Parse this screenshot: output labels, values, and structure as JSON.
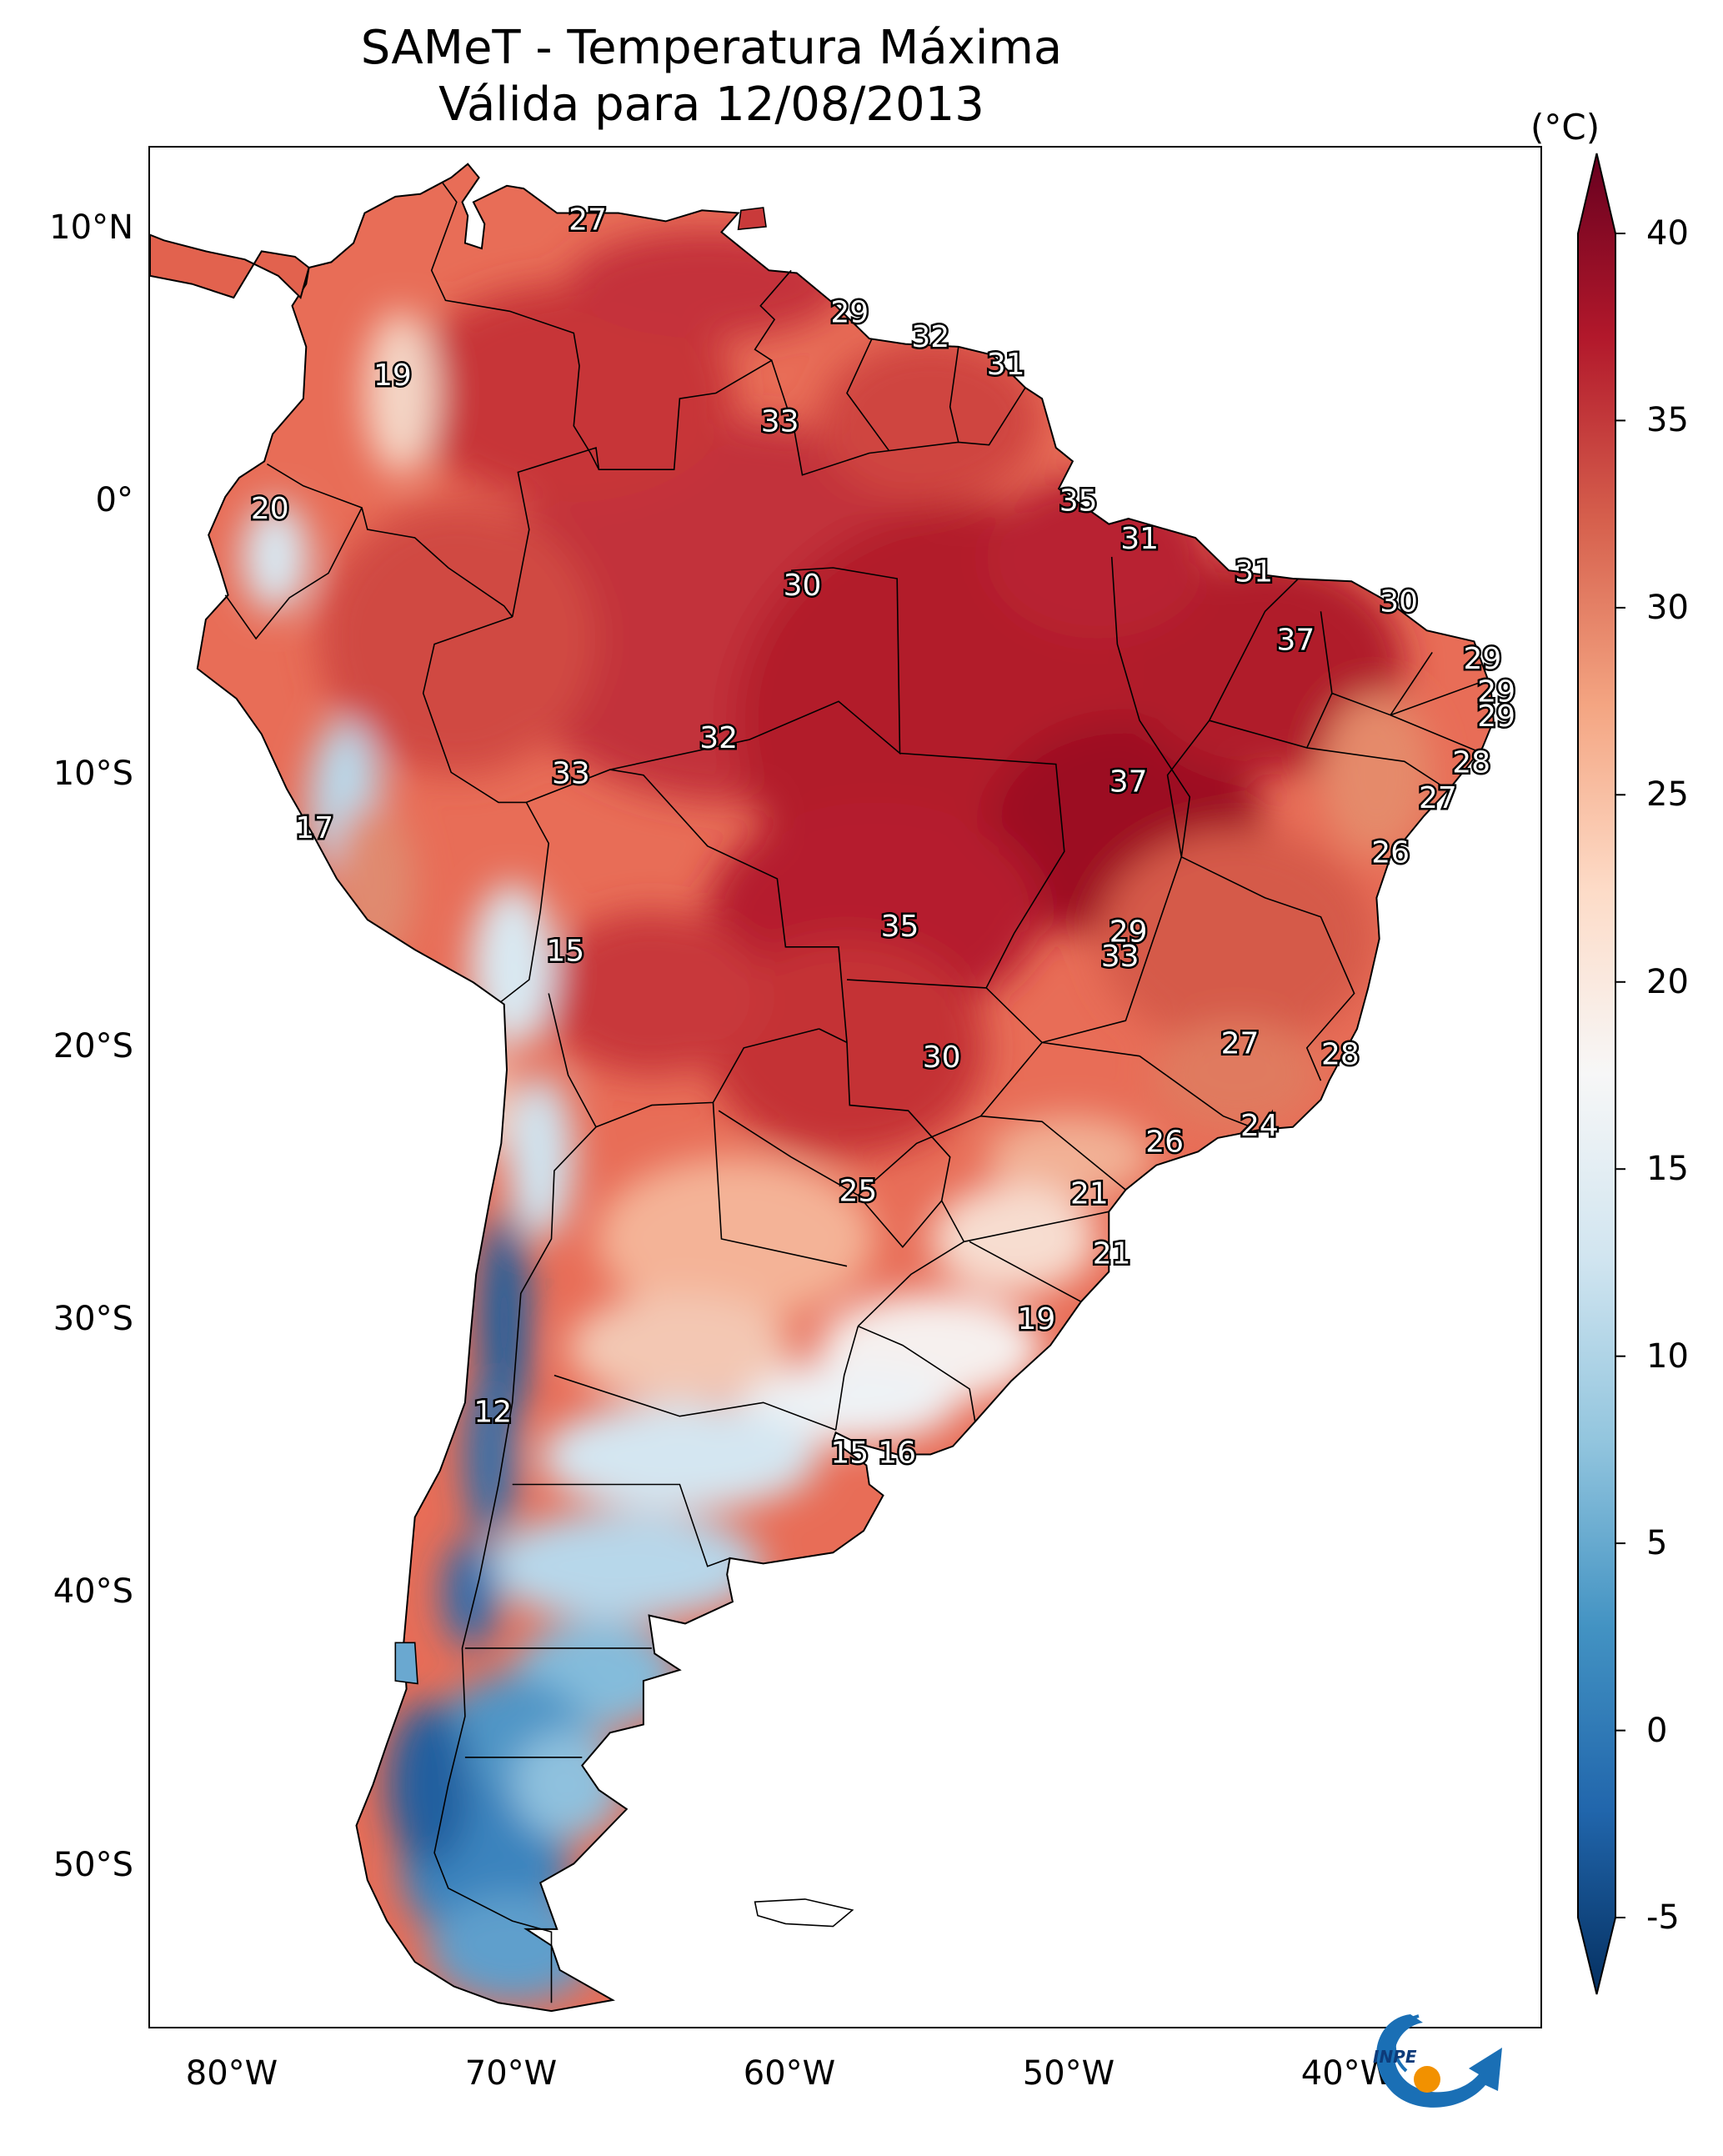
{
  "title": {
    "line1": "SAMeT - Temperatura Máxima",
    "line2": "Válida para 12/08/2013"
  },
  "map": {
    "lon_range": [
      -83,
      -33
    ],
    "lat_range": [
      -56,
      13
    ],
    "y_ticks": [
      {
        "label": "10°N",
        "lat": 10
      },
      {
        "label": "0°",
        "lat": 0
      },
      {
        "label": "10°S",
        "lat": -10
      },
      {
        "label": "20°S",
        "lat": -20
      },
      {
        "label": "30°S",
        "lat": -30
      },
      {
        "label": "40°S",
        "lat": -40
      },
      {
        "label": "50°S",
        "lat": -50
      }
    ],
    "x_ticks": [
      {
        "label": "80°W",
        "lon": -80
      },
      {
        "label": "70°W",
        "lon": -70
      },
      {
        "label": "60°W",
        "lon": -60
      },
      {
        "label": "50°W",
        "lon": -50
      },
      {
        "label": "40°W",
        "lon": -40
      }
    ],
    "station_labels": [
      {
        "value": "27",
        "lon": -67.3,
        "lat": 10.3
      },
      {
        "value": "29",
        "lon": -57.9,
        "lat": 6.9
      },
      {
        "value": "32",
        "lon": -55.0,
        "lat": 6.0
      },
      {
        "value": "31",
        "lon": -52.3,
        "lat": 5.0
      },
      {
        "value": "19",
        "lon": -74.3,
        "lat": 4.6
      },
      {
        "value": "33",
        "lon": -60.4,
        "lat": 2.9
      },
      {
        "value": "35",
        "lon": -49.7,
        "lat": 0.0
      },
      {
        "value": "20",
        "lon": -78.7,
        "lat": -0.3
      },
      {
        "value": "31",
        "lon": -47.5,
        "lat": -1.4
      },
      {
        "value": "31",
        "lon": -43.4,
        "lat": -2.6
      },
      {
        "value": "30",
        "lon": -59.6,
        "lat": -3.1
      },
      {
        "value": "30",
        "lon": -38.2,
        "lat": -3.7
      },
      {
        "value": "37",
        "lon": -41.9,
        "lat": -5.1
      },
      {
        "value": "29",
        "lon": -35.2,
        "lat": -5.8
      },
      {
        "value": "29",
        "lon": -34.7,
        "lat": -7.0
      },
      {
        "value": "29",
        "lon": -34.7,
        "lat": -7.9
      },
      {
        "value": "32",
        "lon": -62.6,
        "lat": -8.7
      },
      {
        "value": "28",
        "lon": -35.6,
        "lat": -9.6
      },
      {
        "value": "33",
        "lon": -67.9,
        "lat": -10.0
      },
      {
        "value": "37",
        "lon": -47.9,
        "lat": -10.3
      },
      {
        "value": "27",
        "lon": -36.8,
        "lat": -10.9
      },
      {
        "value": "17",
        "lon": -77.1,
        "lat": -12.0
      },
      {
        "value": "26",
        "lon": -38.5,
        "lat": -12.9
      },
      {
        "value": "35",
        "lon": -56.1,
        "lat": -15.6
      },
      {
        "value": "29",
        "lon": -47.9,
        "lat": -15.8
      },
      {
        "value": "15",
        "lon": -68.1,
        "lat": -16.5
      },
      {
        "value": "33",
        "lon": -48.2,
        "lat": -16.7
      },
      {
        "value": "27",
        "lon": -43.9,
        "lat": -19.9
      },
      {
        "value": "30",
        "lon": -54.6,
        "lat": -20.4
      },
      {
        "value": "28",
        "lon": -40.3,
        "lat": -20.3
      },
      {
        "value": "24",
        "lon": -43.2,
        "lat": -22.9
      },
      {
        "value": "26",
        "lon": -46.6,
        "lat": -23.5
      },
      {
        "value": "25",
        "lon": -57.6,
        "lat": -25.3
      },
      {
        "value": "21",
        "lon": -49.3,
        "lat": -25.4
      },
      {
        "value": "21",
        "lon": -48.5,
        "lat": -27.6
      },
      {
        "value": "19",
        "lon": -51.2,
        "lat": -30.0
      },
      {
        "value": "12",
        "lon": -70.7,
        "lat": -33.4
      },
      {
        "value": "15",
        "lon": -57.9,
        "lat": -34.9
      },
      {
        "value": "16",
        "lon": -56.2,
        "lat": -34.9
      }
    ]
  },
  "colorbar": {
    "unit": "(°C)",
    "min": -5,
    "max": 40,
    "ticks": [
      "40",
      "35",
      "30",
      "25",
      "20",
      "15",
      "10",
      "5",
      "0",
      "-5"
    ],
    "colors_low_to_high": [
      "#053061",
      "#2166ac",
      "#4393c3",
      "#92c5de",
      "#d1e5f0",
      "#f7f7f7",
      "#fddbc7",
      "#f4a582",
      "#d6604d",
      "#b2182b",
      "#67001f"
    ]
  },
  "logo": {
    "text": "INPE"
  }
}
